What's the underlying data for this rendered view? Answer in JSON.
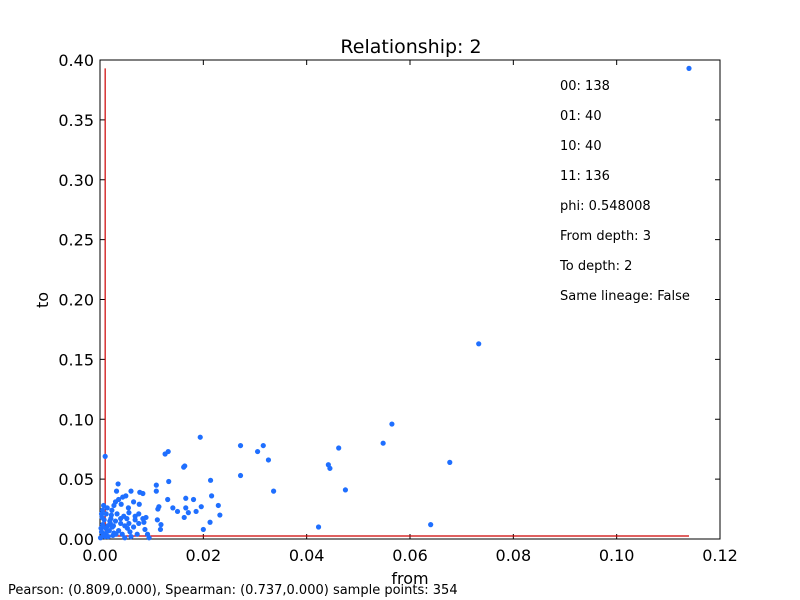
{
  "chart_data": {
    "type": "scatter",
    "title": "Relationship: 2",
    "xlabel": "from",
    "ylabel": "to",
    "xlim": [
      0.0,
      0.12
    ],
    "ylim": [
      0.0,
      0.4
    ],
    "x_ticks": [
      "0.00",
      "0.02",
      "0.04",
      "0.06",
      "0.08",
      "0.10",
      "0.12"
    ],
    "y_ticks": [
      "0.00",
      "0.05",
      "0.10",
      "0.15",
      "0.20",
      "0.25",
      "0.30",
      "0.35",
      "0.40"
    ],
    "grid": false,
    "point_color": "#1f6fff",
    "reference_line_color": "#cc0000",
    "reference_lines": {
      "vertical_x": 0.001,
      "horizontal_y": 0.0025
    },
    "annotations": [
      "00: 138",
      "01: 40",
      "10: 40",
      "11: 136",
      "phi: 0.548008",
      "From depth: 3",
      "To depth: 2",
      "Same lineage: False"
    ],
    "footer": "Pearson: (0.809,0.000), Spearman: (0.737,0.000) sample points: 354",
    "points": [
      [
        0.114,
        0.393
      ],
      [
        0.0733,
        0.163
      ],
      [
        0.0565,
        0.096
      ],
      [
        0.0548,
        0.08
      ],
      [
        0.0677,
        0.064
      ],
      [
        0.064,
        0.012
      ],
      [
        0.0475,
        0.041
      ],
      [
        0.0462,
        0.076
      ],
      [
        0.0442,
        0.062
      ],
      [
        0.0445,
        0.059
      ],
      [
        0.0423,
        0.01
      ],
      [
        0.0336,
        0.04
      ],
      [
        0.0316,
        0.078
      ],
      [
        0.0326,
        0.066
      ],
      [
        0.0305,
        0.073
      ],
      [
        0.0272,
        0.078
      ],
      [
        0.0272,
        0.053
      ],
      [
        0.0232,
        0.02
      ],
      [
        0.0229,
        0.028
      ],
      [
        0.0216,
        0.036
      ],
      [
        0.0214,
        0.049
      ],
      [
        0.0213,
        0.014
      ],
      [
        0.0196,
        0.027
      ],
      [
        0.0194,
        0.085
      ],
      [
        0.02,
        0.008
      ],
      [
        0.0181,
        0.033
      ],
      [
        0.0186,
        0.023
      ],
      [
        0.0171,
        0.022
      ],
      [
        0.0166,
        0.034
      ],
      [
        0.0164,
        0.061
      ],
      [
        0.0162,
        0.06
      ],
      [
        0.0166,
        0.026
      ],
      [
        0.0163,
        0.018
      ],
      [
        0.015,
        0.023
      ],
      [
        0.0141,
        0.026
      ],
      [
        0.0133,
        0.048
      ],
      [
        0.0131,
        0.033
      ],
      [
        0.0132,
        0.073
      ],
      [
        0.0126,
        0.071
      ],
      [
        0.0118,
        0.012
      ],
      [
        0.0117,
        0.008
      ],
      [
        0.0114,
        0.027
      ],
      [
        0.0112,
        0.025
      ],
      [
        0.0111,
        0.016
      ],
      [
        0.0109,
        0.045
      ],
      [
        0.0109,
        0.04
      ],
      [
        0.0092,
        0.004
      ],
      [
        0.0087,
        0.008
      ],
      [
        0.0085,
        0.014
      ],
      [
        0.0083,
        0.017
      ],
      [
        0.0083,
        0.038
      ],
      [
        0.0077,
        0.039
      ],
      [
        0.0076,
        0.029
      ],
      [
        0.0075,
        0.021
      ],
      [
        0.0068,
        0.019
      ],
      [
        0.0068,
        0.016
      ],
      [
        0.006,
        0.04
      ],
      [
        0.0058,
        0.006
      ],
      [
        0.0056,
        0.022
      ],
      [
        0.0056,
        0.013
      ],
      [
        0.0055,
        0.026
      ],
      [
        0.0052,
        0.017
      ],
      [
        0.005,
        0.036
      ],
      [
        0.0048,
        0.011
      ],
      [
        0.0046,
        0.019
      ],
      [
        0.0044,
        0.035
      ],
      [
        0.0041,
        0.029
      ],
      [
        0.004,
        0.017
      ],
      [
        0.0036,
        0.033
      ],
      [
        0.0035,
        0.046
      ],
      [
        0.0033,
        0.021
      ],
      [
        0.003,
        0.015
      ],
      [
        0.003,
        0.031
      ],
      [
        0.0027,
        0.028
      ],
      [
        0.0026,
        0.011
      ],
      [
        0.0025,
        0.003
      ],
      [
        0.0023,
        0.024
      ],
      [
        0.0022,
        0.02
      ],
      [
        0.0021,
        0.017
      ],
      [
        0.002,
        0.013
      ],
      [
        0.0018,
        0.007
      ],
      [
        0.0015,
        0.011
      ],
      [
        0.0014,
        0.026
      ],
      [
        0.0012,
        0.005
      ],
      [
        0.0011,
        0.009
      ],
      [
        0.001,
        0.002
      ],
      [
        0.001,
        0.069
      ],
      [
        0.0008,
        0.016
      ],
      [
        0.0007,
        0.028
      ],
      [
        0.0006,
        0.004
      ],
      [
        0.0005,
        0.012
      ],
      [
        0.0004,
        0.018
      ],
      [
        0.0003,
        0.006
      ],
      [
        0.0002,
        0.009
      ],
      [
        0.0001,
        0.001
      ],
      [
        0.0003,
        0.021
      ],
      [
        0.0036,
        0.007
      ],
      [
        0.0043,
        0.004
      ],
      [
        0.0065,
        0.01
      ],
      [
        0.0072,
        0.004
      ],
      [
        0.0095,
        0.001
      ],
      [
        0.006,
        0.002
      ],
      [
        0.0048,
        0.001
      ],
      [
        0.0031,
        0.004
      ],
      [
        0.0016,
        0.002
      ],
      [
        0.0027,
        0.005
      ],
      [
        0.0053,
        0.009
      ],
      [
        0.0075,
        0.013
      ],
      [
        0.0089,
        0.018
      ],
      [
        0.004,
        0.013
      ],
      [
        0.0019,
        0.015
      ],
      [
        0.0005,
        0.024
      ],
      [
        0.0012,
        0.021
      ],
      [
        0.0024,
        0.01
      ],
      [
        0.0065,
        0.031
      ],
      [
        0.0032,
        0.04
      ]
    ]
  }
}
